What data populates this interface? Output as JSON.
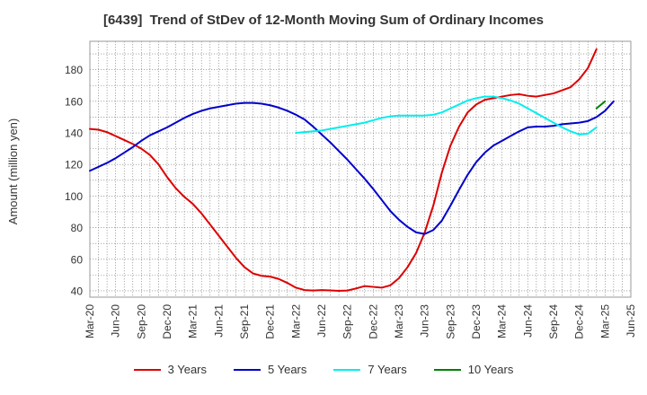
{
  "chart_data": {
    "type": "line",
    "title": "[6439]  Trend of StDev of 12-Month Moving Sum of Ordinary Incomes",
    "xlabel": "",
    "ylabel": "Amount (million yen)",
    "ylim": [
      36,
      198
    ],
    "y_ticks": [
      40,
      60,
      80,
      100,
      120,
      140,
      160,
      180
    ],
    "x_ticks": [
      "Mar-20",
      "Jun-20",
      "Sep-20",
      "Dec-20",
      "Mar-21",
      "Jun-21",
      "Sep-21",
      "Dec-21",
      "Mar-22",
      "Jun-22",
      "Sep-22",
      "Dec-22",
      "Mar-23",
      "Jun-23",
      "Sep-23",
      "Dec-23",
      "Mar-24",
      "Jun-24",
      "Sep-24",
      "Dec-24",
      "Mar-25",
      "Jun-25"
    ],
    "grid": true,
    "legend_position": "bottom",
    "series": [
      {
        "name": "3 Years",
        "color": "#dd0000",
        "start": "Mar-20",
        "values": [
          142.5,
          142,
          140.5,
          138,
          135.5,
          133,
          130,
          126,
          120,
          112,
          105,
          99.5,
          95,
          89,
          82,
          75,
          68,
          61,
          55,
          51,
          49.5,
          49,
          47.5,
          45,
          42,
          40.5,
          40.2,
          40.5,
          40.3,
          40,
          40.2,
          41.5,
          43,
          42.5,
          42,
          43.5,
          48,
          55,
          64,
          77,
          94,
          115,
          132,
          144,
          153,
          158,
          161,
          162,
          163,
          164,
          164.5,
          163.5,
          163,
          164,
          165,
          167,
          169,
          174,
          181,
          193
        ]
      },
      {
        "name": "5 Years",
        "color": "#0000cc",
        "start": "Mar-20",
        "values": [
          116,
          118.5,
          121,
          124,
          127.5,
          131,
          135,
          138.5,
          141,
          143.5,
          146.5,
          149.5,
          152,
          154,
          155.5,
          156.5,
          157.5,
          158.5,
          159,
          159,
          158.5,
          157.5,
          156,
          154,
          151.5,
          148.5,
          144,
          139,
          134,
          128.5,
          123,
          117,
          111,
          104.5,
          97.5,
          90.5,
          85,
          80.5,
          77,
          76,
          78.5,
          84.5,
          94,
          104,
          113.5,
          121.5,
          127.5,
          132,
          135,
          138,
          141,
          143.5,
          144,
          144,
          144.5,
          145.5,
          146,
          146.5,
          147.5,
          150,
          154,
          160
        ]
      },
      {
        "name": "7 Years",
        "color": "#00eeee",
        "start": "Mar-22",
        "values": [
          140,
          140.5,
          141,
          141.5,
          142.5,
          143.5,
          144.5,
          145.5,
          146.5,
          148,
          149.5,
          150.5,
          151,
          151,
          151,
          151,
          151.5,
          153,
          155.5,
          158,
          160.5,
          162,
          163,
          163,
          162,
          160.5,
          158.5,
          155.5,
          152.5,
          149.5,
          146.5,
          143.5,
          141,
          139,
          139.5,
          143.5
        ]
      },
      {
        "name": "10 Years",
        "color": "#008000",
        "start": "Feb-25",
        "values": [
          155.5,
          160
        ]
      }
    ]
  }
}
